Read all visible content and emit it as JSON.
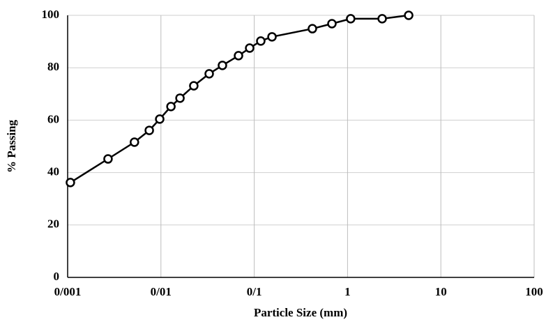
{
  "chart_data": {
    "type": "line",
    "x_label": "Particle Size (mm)",
    "y_label": "% Passing",
    "x_log": true,
    "grid": true,
    "color": "#000000",
    "marker": "circle",
    "xlim": [
      0.001,
      100
    ],
    "xticks": [
      {
        "value": 0.001,
        "label": "0/001"
      },
      {
        "value": 0.01,
        "label": "0/01"
      },
      {
        "value": 0.1,
        "label": "0/1"
      },
      1,
      10,
      100
    ],
    "ylim": [
      0,
      100
    ],
    "yticks": [
      0,
      20,
      40,
      60,
      80,
      100
    ],
    "x": [
      0.00107,
      0.00271,
      0.0052,
      0.0075,
      0.0097,
      0.0128,
      0.016,
      0.0225,
      0.0329,
      0.0456,
      0.0678,
      0.0893,
      0.1175,
      0.155,
      0.42,
      0.68,
      1.08,
      2.35,
      4.52
    ],
    "values": [
      36.2,
      45.2,
      51.6,
      56.1,
      60.4,
      65.2,
      68.4,
      73.1,
      77.7,
      80.9,
      84.6,
      87.5,
      90.2,
      91.8,
      94.9,
      96.8,
      98.7,
      98.7,
      100
    ]
  }
}
